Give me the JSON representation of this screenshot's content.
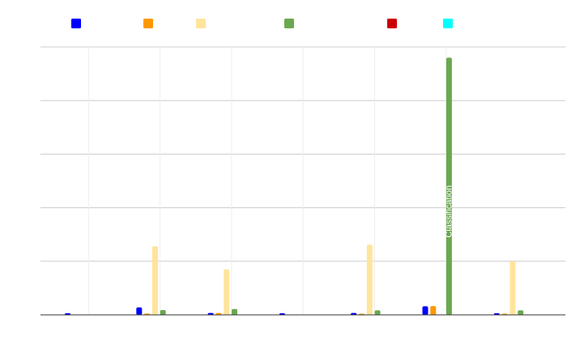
{
  "chart_data": {
    "type": "bar",
    "title": "",
    "xlabel": "",
    "ylabel": "",
    "ylim": [
      0,
      100
    ],
    "grid": true,
    "legend_position": "top",
    "categories": [
      "",
      "",
      "",
      "",
      "",
      "",
      ""
    ],
    "series": [
      {
        "color": "#0000ff",
        "values": [
          0.6,
          2.8,
          0.7,
          0.6,
          0.7,
          3.2,
          0.6
        ]
      },
      {
        "color": "#ff9800",
        "values": [
          0.0,
          0.5,
          0.7,
          0.0,
          0.4,
          3.3,
          0.3
        ]
      },
      {
        "color": "#ffe49c",
        "values": [
          0.0,
          25.6,
          17.0,
          0.0,
          26.2,
          0.0,
          20.0
        ]
      },
      {
        "color": "#6aa84f",
        "values": [
          0.0,
          1.8,
          2.2,
          0.0,
          1.7,
          96.0,
          1.7
        ]
      },
      {
        "color": "#cc0000",
        "values": [
          0,
          0,
          0,
          0,
          0,
          0,
          0
        ]
      },
      {
        "color": "#00ffff",
        "values": [
          0,
          0,
          0,
          0,
          0,
          0,
          0
        ]
      }
    ],
    "data_labels": [
      {
        "series": 3,
        "category": 5,
        "text": "Classification"
      }
    ]
  }
}
